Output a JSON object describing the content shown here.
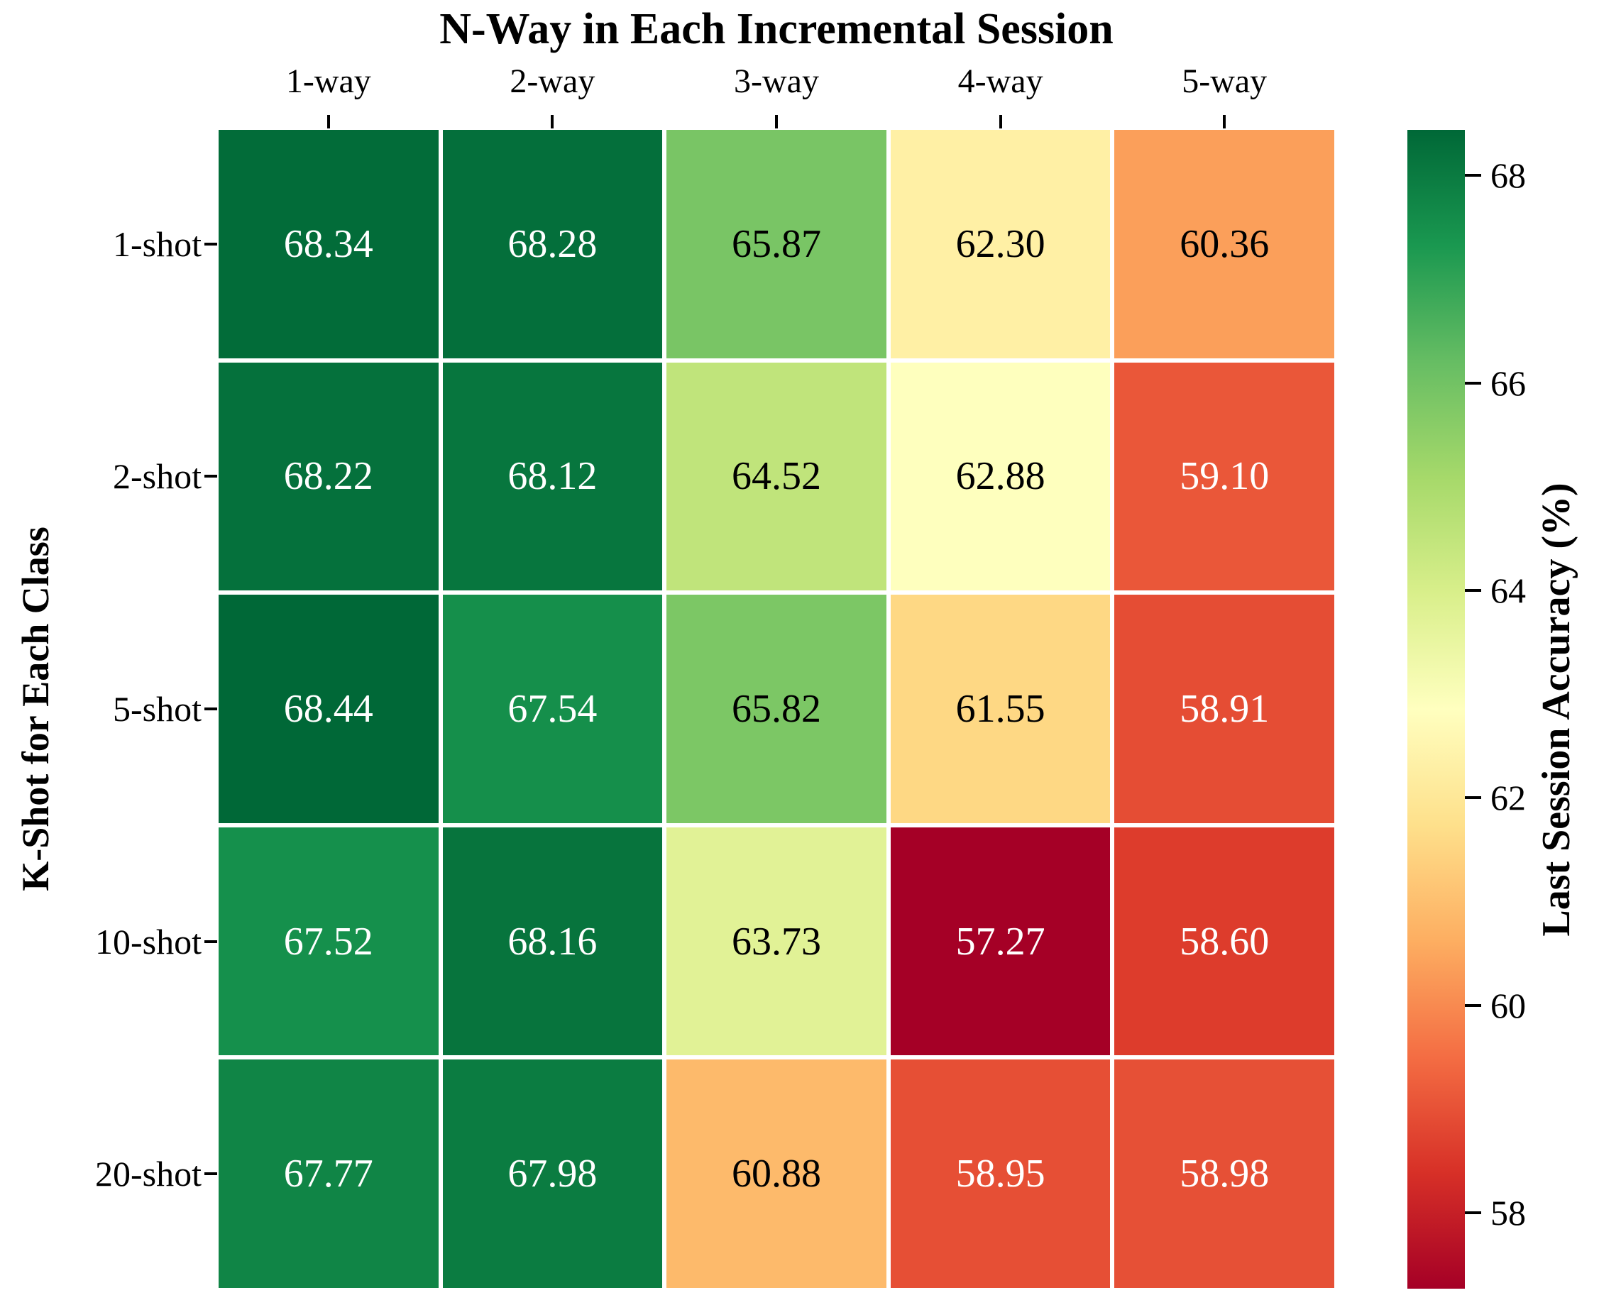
{
  "chart_data": {
    "type": "heatmap",
    "title": "N-Way in Each Incremental Session",
    "ylabel": "K-Shot for Each Class",
    "columns": [
      "1-way",
      "2-way",
      "3-way",
      "4-way",
      "5-way"
    ],
    "rows": [
      "1-shot",
      "2-shot",
      "5-shot",
      "10-shot",
      "20-shot"
    ],
    "values": [
      [
        68.34,
        68.28,
        65.87,
        62.3,
        60.36
      ],
      [
        68.22,
        68.12,
        64.52,
        62.88,
        59.1
      ],
      [
        68.44,
        67.54,
        65.82,
        61.55,
        58.91
      ],
      [
        67.52,
        68.16,
        63.73,
        57.27,
        58.6
      ],
      [
        67.77,
        67.98,
        60.88,
        58.95,
        58.98
      ]
    ],
    "annotations_decimals": 2,
    "colorbar": {
      "label": "Last Session Accuracy (%)",
      "ticks": [
        68,
        66,
        64,
        62,
        60,
        58
      ],
      "vmin": 57.27,
      "vmax": 68.44
    },
    "colormap": {
      "name": "RdYlGn",
      "anchors": [
        "#a50026",
        "#d73027",
        "#f46d43",
        "#fdae61",
        "#fee08b",
        "#ffffbf",
        "#d9ef8b",
        "#a6d96a",
        "#66bd63",
        "#1a9850",
        "#006837"
      ]
    },
    "cell_text_colors": {
      "dark_cells": "#ffffff",
      "light_cells": "#000000"
    },
    "legend_position": "right-colorbar",
    "grid_lines": "white-6px"
  }
}
